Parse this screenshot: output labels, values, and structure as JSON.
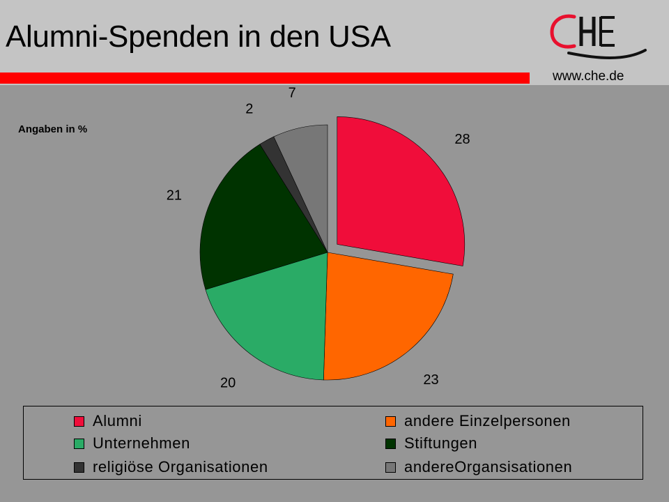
{
  "header": {
    "title": "Alumni-Spenden in den USA",
    "url": "www.che.de",
    "logo_text": "CHE"
  },
  "chart_data": {
    "type": "pie",
    "title": "Alumni-Spenden in den USA",
    "subtitle": "Angaben in %",
    "exploded_slice": "Alumni",
    "legend_position": "bottom",
    "slices": [
      {
        "label": "Alumni",
        "value": 28,
        "color": "#f00d3a"
      },
      {
        "label": "andere Einzelpersonen",
        "value": 23,
        "color": "#ff6600"
      },
      {
        "label": "Unternehmen",
        "value": 20,
        "color": "#2aab66"
      },
      {
        "label": "Stiftungen",
        "value": 21,
        "color": "#003300"
      },
      {
        "label": "religiöse Organisationen",
        "value": 2,
        "color": "#333333"
      },
      {
        "label": "andereOrgansisationen",
        "value": 7,
        "color": "#777777"
      }
    ]
  },
  "colors": {
    "background": "#969696",
    "header": "#c4c4c4",
    "accent_bar": "#ff0000",
    "logo_red": "#e8102e"
  }
}
